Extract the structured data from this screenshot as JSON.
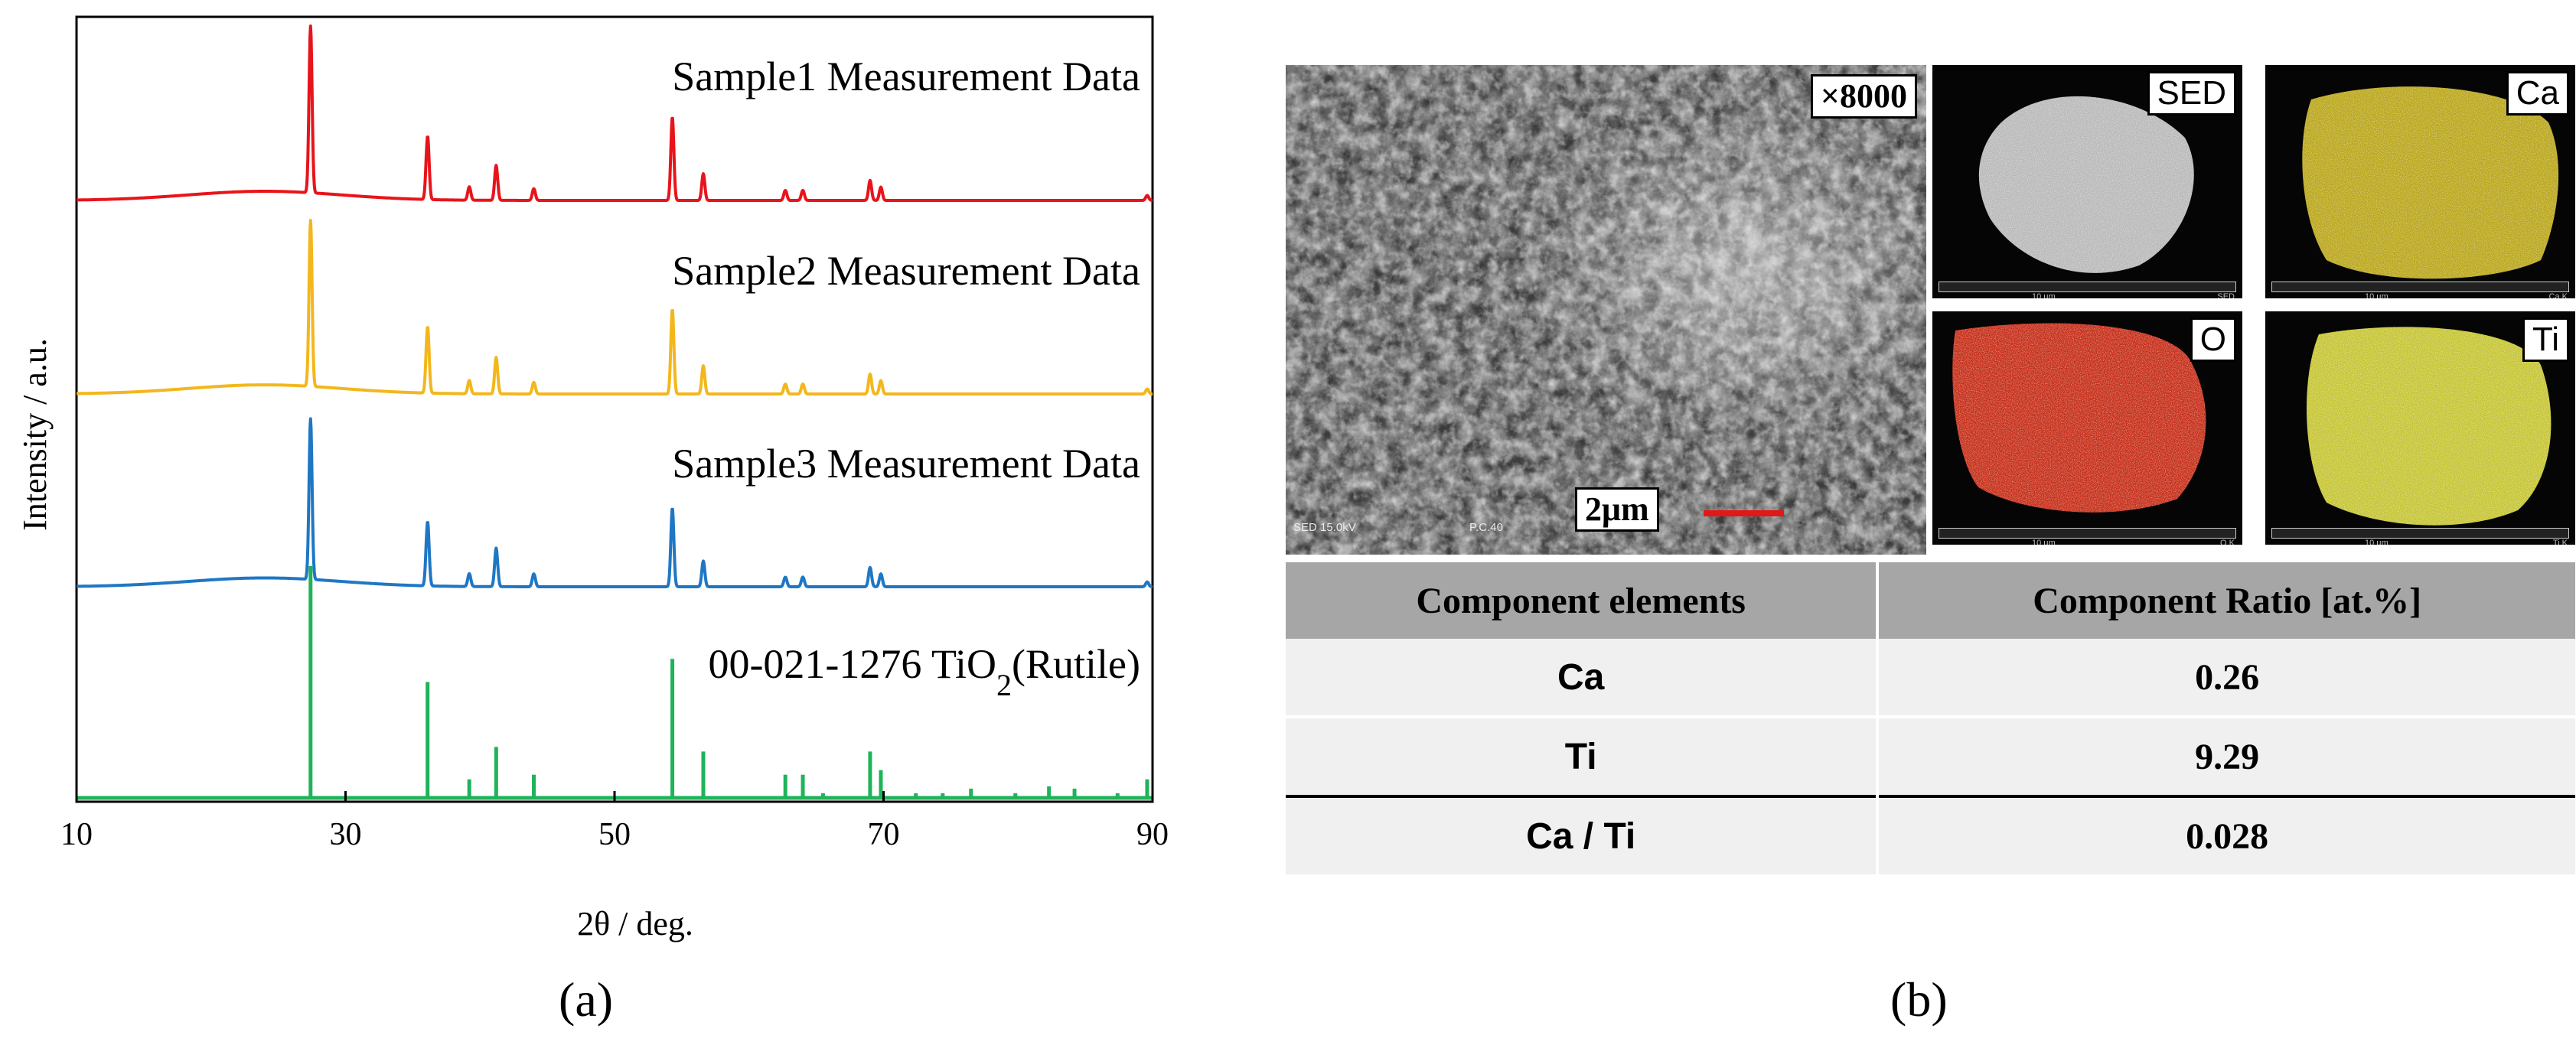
{
  "panels": {
    "a_label": "(a)",
    "b_label": "(b)"
  },
  "chart_data": {
    "type": "line",
    "xlabel": "2θ / deg.",
    "ylabel": "Intensity / a.u.",
    "xlim": [
      10,
      90
    ],
    "xticks": [
      10,
      30,
      50,
      70,
      90
    ],
    "yticks": [],
    "grid": false,
    "legend": "none",
    "series": [
      {
        "name": "Sample1 Measurement Data",
        "color": "#e8141b",
        "peaks": [
          [
            27.4,
            100
          ],
          [
            36.1,
            38
          ],
          [
            39.2,
            8
          ],
          [
            41.2,
            21
          ],
          [
            44.0,
            7
          ],
          [
            54.3,
            50
          ],
          [
            56.6,
            16
          ],
          [
            62.7,
            6
          ],
          [
            64.0,
            6
          ],
          [
            69.0,
            12
          ],
          [
            69.8,
            8
          ],
          [
            89.6,
            3
          ]
        ]
      },
      {
        "name": "Sample2 Measurement Data",
        "color": "#f3b71d",
        "peaks": [
          [
            27.4,
            100
          ],
          [
            36.1,
            40
          ],
          [
            39.2,
            8
          ],
          [
            41.2,
            22
          ],
          [
            44.0,
            7
          ],
          [
            54.3,
            51
          ],
          [
            56.6,
            17
          ],
          [
            62.7,
            6
          ],
          [
            64.0,
            6
          ],
          [
            69.0,
            12
          ],
          [
            69.8,
            8
          ],
          [
            89.6,
            3
          ]
        ]
      },
      {
        "name": "Sample3 Measurement Data",
        "color": "#1f77c4",
        "peaks": [
          [
            27.4,
            100
          ],
          [
            36.1,
            40
          ],
          [
            39.2,
            8
          ],
          [
            41.2,
            24
          ],
          [
            44.0,
            8
          ],
          [
            54.3,
            49
          ],
          [
            56.6,
            16
          ],
          [
            62.7,
            6
          ],
          [
            64.0,
            6
          ],
          [
            69.0,
            12
          ],
          [
            69.8,
            8
          ],
          [
            89.6,
            3
          ]
        ]
      },
      {
        "name": "00-021-1276 TiO₂(Rutile)",
        "label_main": "00-021-1276 TiO",
        "label_sub": "2",
        "label_tail": "(Rutile)",
        "color": "#1fb35a",
        "type": "stick",
        "peaks": [
          [
            27.4,
            100
          ],
          [
            36.1,
            50
          ],
          [
            39.2,
            8
          ],
          [
            41.2,
            22
          ],
          [
            44.0,
            10
          ],
          [
            54.3,
            60
          ],
          [
            56.6,
            20
          ],
          [
            62.7,
            10
          ],
          [
            64.0,
            10
          ],
          [
            65.5,
            2
          ],
          [
            69.0,
            20
          ],
          [
            69.8,
            12
          ],
          [
            72.4,
            2
          ],
          [
            74.4,
            2
          ],
          [
            76.5,
            4
          ],
          [
            79.8,
            2
          ],
          [
            82.3,
            5
          ],
          [
            84.2,
            4
          ],
          [
            87.4,
            2
          ],
          [
            89.6,
            8
          ]
        ]
      }
    ]
  },
  "micrographs": {
    "sem_magnification": "×8000",
    "sem_scale_label": "2μm",
    "sem_footer_left": "SED  15.0kV",
    "sem_footer_mid": "P.C.40",
    "maps": [
      {
        "tag": "SED",
        "tint": "#d8d8d8",
        "caption": "SED"
      },
      {
        "tag": "Ca",
        "tint": "#d9c21c",
        "caption": "Ca K"
      },
      {
        "tag": "O",
        "tint": "#e8341a",
        "caption": "O K"
      },
      {
        "tag": "Ti",
        "tint": "#e7e63a",
        "caption": "Ti K"
      }
    ],
    "map_scale_text": "10 μm"
  },
  "table": {
    "header": [
      "Component elements",
      "Component Ratio [at.%]"
    ],
    "rows": [
      {
        "element": "Ca",
        "value": "0.26"
      },
      {
        "element": "Ti",
        "value": "9.29"
      },
      {
        "element": "Ca / Ti",
        "value": "0.028"
      }
    ]
  }
}
